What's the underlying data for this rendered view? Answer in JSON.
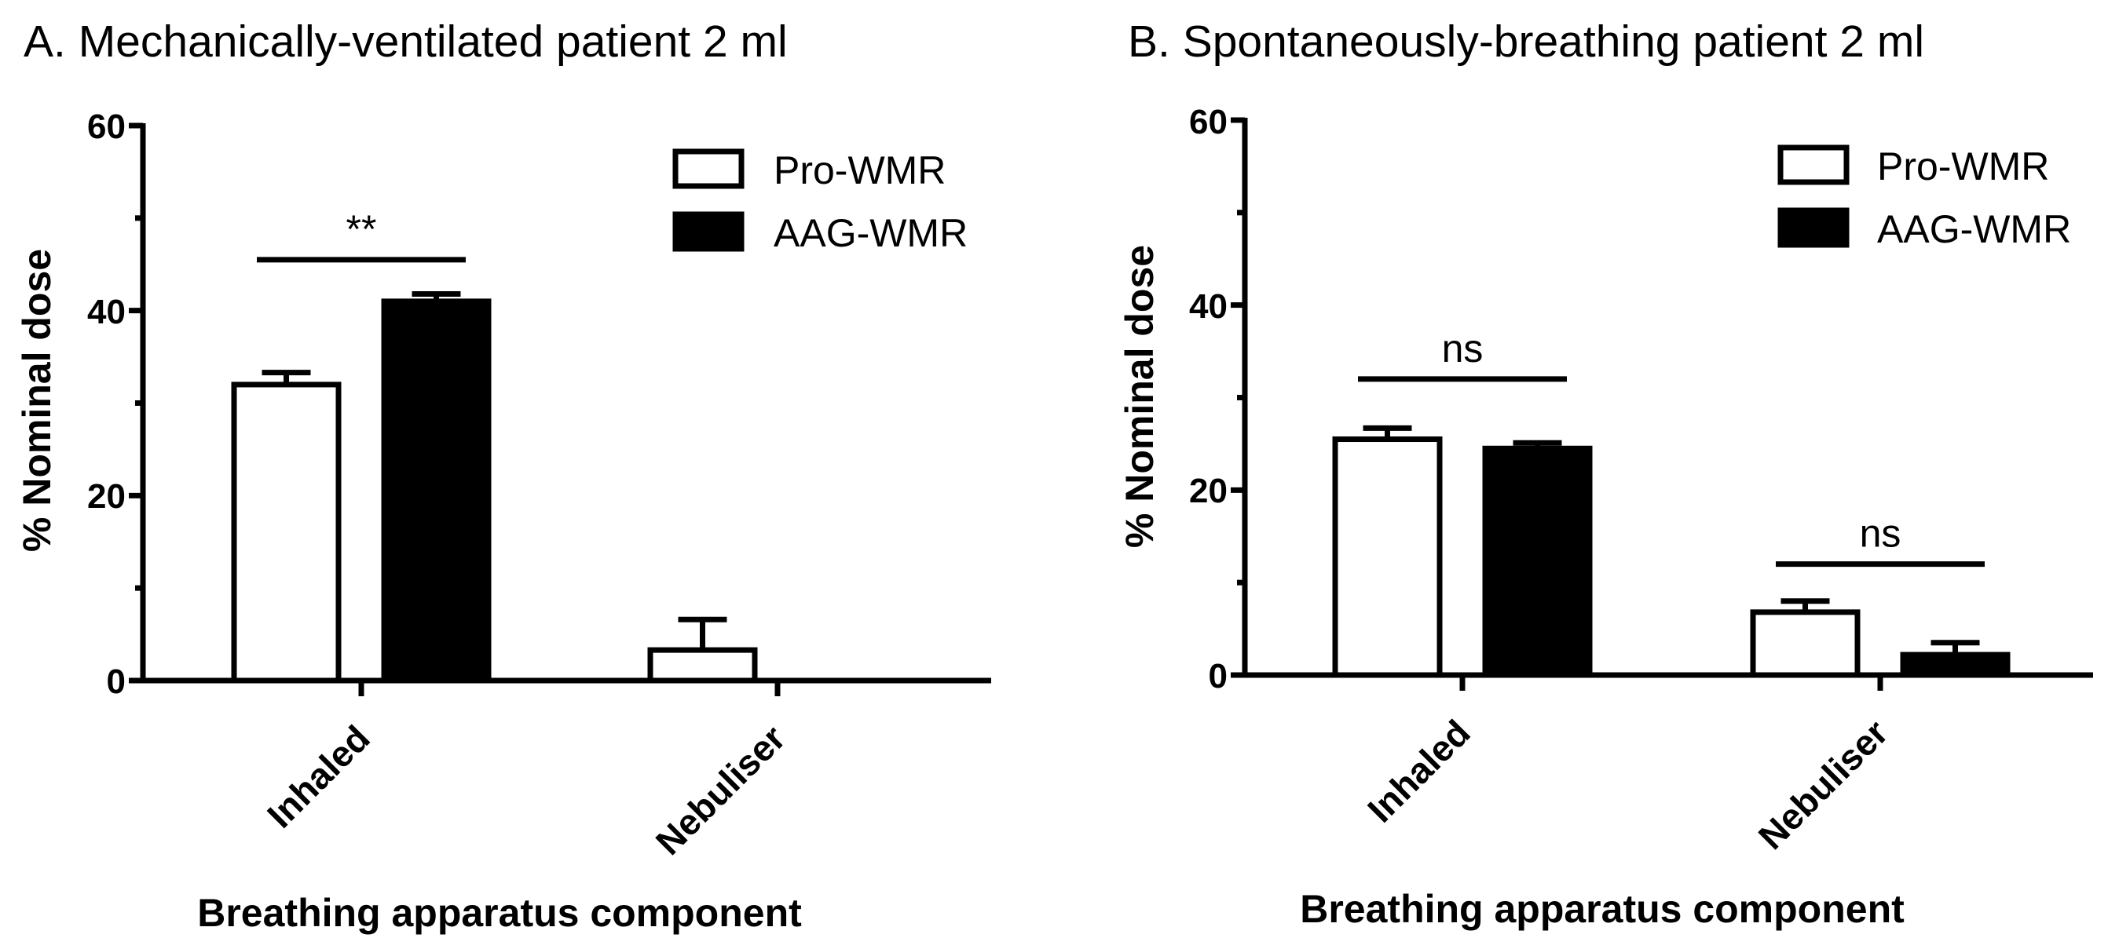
{
  "chart_data": [
    {
      "type": "bar",
      "title": "A. Mechanically-ventilated patient 2 ml",
      "xlabel": "Breathing apparatus component",
      "ylabel": "% Nominal dose",
      "ylim": [
        0,
        60
      ],
      "yticks": [
        "0",
        "20",
        "40",
        "60"
      ],
      "categories": [
        "Inhaled",
        "Nebuliser"
      ],
      "series": [
        {
          "name": "Pro-WMR",
          "values": [
            32,
            3.3
          ],
          "errors": [
            1.3,
            3.3
          ],
          "fill": "#ffffff",
          "stroke": "#000000"
        },
        {
          "name": "AAG-WMR",
          "values": [
            41,
            0
          ],
          "errors": [
            0.8,
            0
          ],
          "fill": "#000000",
          "stroke": "#000000"
        }
      ],
      "significance": [
        {
          "category": 0,
          "label": "**",
          "y": 45.5
        }
      ],
      "legend": "top-right"
    },
    {
      "type": "bar",
      "title": "B. Spontaneously-breathing patient 2 ml",
      "xlabel": "Breathing apparatus component",
      "ylabel": "% Nominal dose",
      "ylim": [
        0,
        60
      ],
      "yticks": [
        "0",
        "20",
        "40",
        "60"
      ],
      "categories": [
        "Inhaled",
        "Nebuliser"
      ],
      "series": [
        {
          "name": "Pro-WMR",
          "values": [
            25.5,
            6.8
          ],
          "errors": [
            1.2,
            1.2
          ],
          "fill": "#ffffff",
          "stroke": "#000000"
        },
        {
          "name": "AAG-WMR",
          "values": [
            24.5,
            2.2
          ],
          "errors": [
            0.6,
            1.3
          ],
          "fill": "#000000",
          "stroke": "#000000"
        }
      ],
      "significance": [
        {
          "category": 0,
          "label": "ns",
          "y": 32
        },
        {
          "category": 1,
          "label": "ns",
          "y": 12
        }
      ],
      "legend": "top-right"
    }
  ]
}
